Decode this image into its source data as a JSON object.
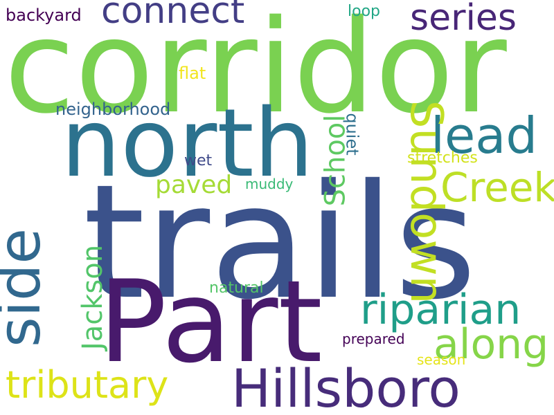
{
  "word_cloud": {
    "words": {
      "corridor": {
        "text": "corridor",
        "color": "#7ad151"
      },
      "north": {
        "text": "north",
        "color": "#2c728e"
      },
      "trails": {
        "text": "trails",
        "color": "#3b528b"
      },
      "part": {
        "text": "Part",
        "color": "#481a6c"
      },
      "hillsboro": {
        "text": "Hillsboro",
        "color": "#472c7a"
      },
      "tributary": {
        "text": "tributary",
        "color": "#dde318"
      },
      "side": {
        "text": "side",
        "color": "#31688e"
      },
      "riparian": {
        "text": "riparian",
        "color": "#1f9e89"
      },
      "along": {
        "text": "along",
        "color": "#86d549"
      },
      "lead": {
        "text": "lead",
        "color": "#287c8e"
      },
      "creek": {
        "text": "Creek",
        "color": "#bddf26"
      },
      "connect": {
        "text": "connect",
        "color": "#433e85"
      },
      "series": {
        "text": "series",
        "color": "#482677"
      },
      "sundown": {
        "text": "Sundown",
        "color": "#c2df23"
      },
      "school": {
        "text": "School",
        "color": "#5ec962"
      },
      "jackson": {
        "text": "Jackson",
        "color": "#52c569"
      },
      "paved": {
        "text": "paved",
        "color": "#a5db36"
      },
      "backyard": {
        "text": "backyard",
        "color": "#440154"
      },
      "loop": {
        "text": "loop",
        "color": "#21a685"
      },
      "flat": {
        "text": "flat",
        "color": "#f1e51d"
      },
      "neighborhood": {
        "text": "neighborhood",
        "color": "#33638d"
      },
      "wet": {
        "text": "wet",
        "color": "#3e4989"
      },
      "muddy": {
        "text": "muddy",
        "color": "#3aba76"
      },
      "quiet": {
        "text": "quiet",
        "color": "#2e6f8e"
      },
      "stretches": {
        "text": "stretches",
        "color": "#d2e21b"
      },
      "natural": {
        "text": "natural",
        "color": "#54c568"
      },
      "prepared": {
        "text": "prepared",
        "color": "#440256"
      },
      "season": {
        "text": "season",
        "color": "#e5e419"
      }
    }
  }
}
